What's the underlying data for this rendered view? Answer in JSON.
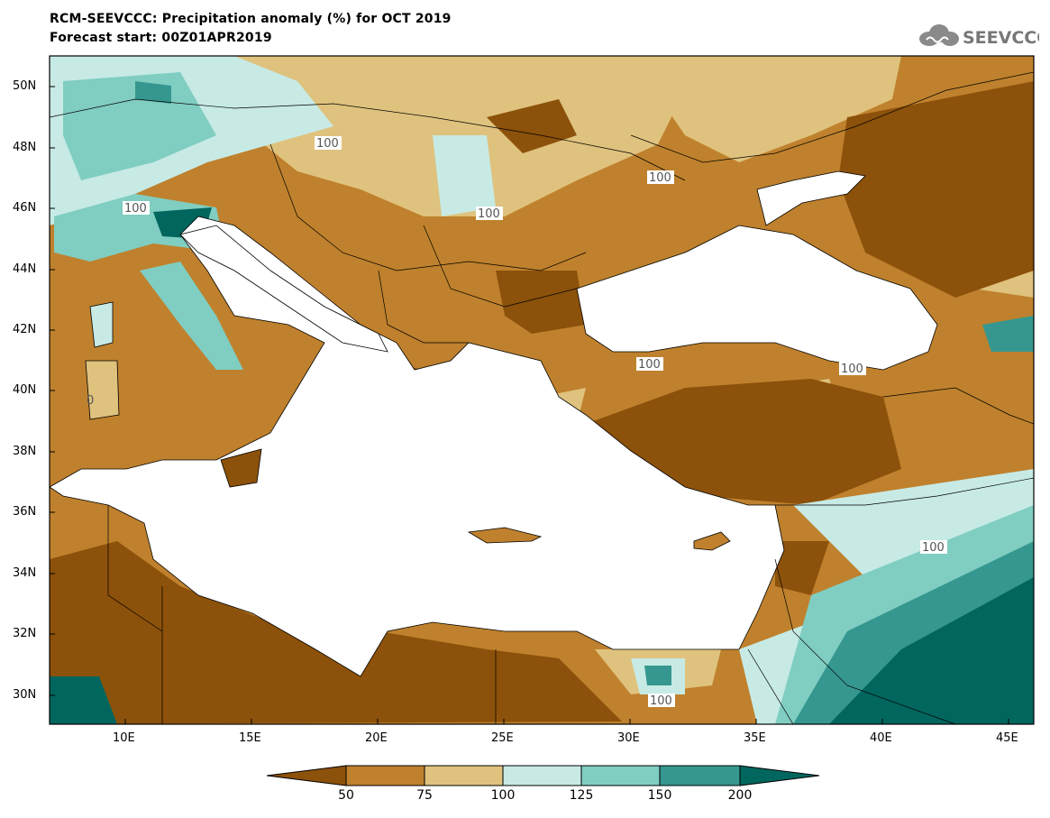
{
  "header": {
    "title": "RCM-SEEVCCC: Precipitation anomaly (%) for OCT 2019",
    "subtitle": "Forecast start: 00Z01APR2019",
    "logo_text": "SEEVCCC"
  },
  "map": {
    "latitude_labels": [
      "50N",
      "48N",
      "46N",
      "44N",
      "42N",
      "40N",
      "38N",
      "36N",
      "34N",
      "32N",
      "30N"
    ],
    "longitude_labels": [
      "10E",
      "15E",
      "20E",
      "25E",
      "30E",
      "35E",
      "40E",
      "45E"
    ],
    "contour_labels": [
      "100",
      "100",
      "100",
      "100",
      "100",
      "100",
      "100",
      "100",
      "100",
      "0"
    ],
    "colors": {
      "below_50": "#8c510a",
      "50_75": "#bf812d",
      "75_100": "#dfc27d",
      "100_125": "#c7eae5",
      "125_150": "#80cdc1",
      "150_200": "#35978f",
      "above_200": "#01665e",
      "sea": "#ffffff"
    }
  },
  "colorbar": {
    "tick_labels": [
      "50",
      "75",
      "100",
      "125",
      "150",
      "200"
    ],
    "colors": [
      "#8c510a",
      "#bf812d",
      "#dfc27d",
      "#c7eae5",
      "#80cdc1",
      "#35978f",
      "#01665e"
    ]
  }
}
